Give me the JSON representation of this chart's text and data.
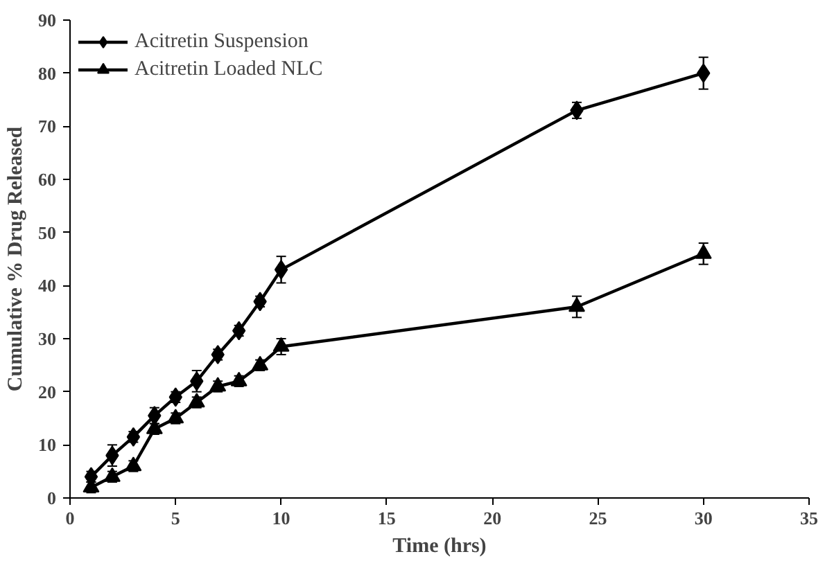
{
  "chart_data": {
    "type": "line",
    "xlabel": "Time (hrs)",
    "ylabel": "Cumulative % Drug Released",
    "xlim": [
      0,
      35
    ],
    "xticks": [
      0,
      5,
      10,
      15,
      20,
      25,
      30,
      35
    ],
    "ylim": [
      0,
      90
    ],
    "yticks": [
      0,
      10,
      20,
      30,
      40,
      50,
      60,
      70,
      80,
      90
    ],
    "grid": false,
    "legend": "top left",
    "line_style": "solid",
    "series": [
      {
        "name": "Acitretin Suspension",
        "color": "#000000",
        "marker": "diamond",
        "x": [
          1,
          2,
          3,
          4,
          5,
          6,
          7,
          8,
          9,
          10,
          24,
          30
        ],
        "values": [
          4,
          8,
          11.5,
          15.5,
          19,
          22,
          27,
          31.5,
          37,
          43,
          73,
          80
        ],
        "errors": [
          1,
          2,
          1,
          1.5,
          1,
          2,
          1,
          1,
          1,
          2.5,
          1.5,
          3
        ]
      },
      {
        "name": "Acitretin Loaded NLC",
        "color": "#000000",
        "marker": "triangle",
        "x": [
          1,
          2,
          3,
          4,
          5,
          6,
          7,
          8,
          9,
          10,
          24,
          30
        ],
        "values": [
          2,
          4,
          6,
          13,
          15,
          18,
          21,
          22,
          25,
          28.5,
          36,
          46
        ],
        "errors": [
          1,
          1,
          1,
          1,
          1,
          1,
          1,
          1,
          1,
          1.5,
          2,
          2
        ]
      }
    ]
  }
}
